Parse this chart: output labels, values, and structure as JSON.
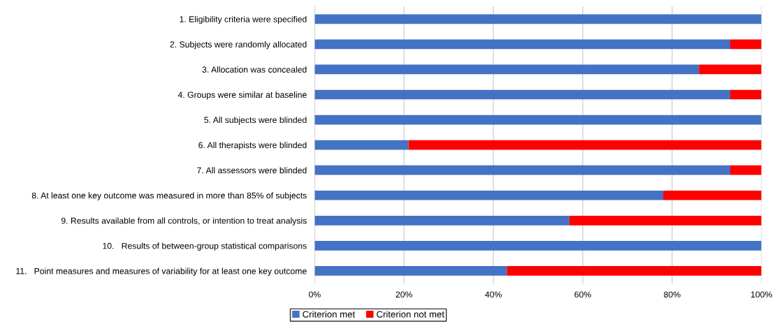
{
  "chart_data": {
    "type": "bar",
    "orientation": "horizontal",
    "stacked": true,
    "categories": [
      "1. Eligibility criteria were specified",
      "2. Subjects were randomly allocated",
      "3. Allocation was concealed",
      "4. Groups were similar at baseline",
      "5. All subjects were blinded",
      "6. All therapists were blinded",
      "7. All assessors were blinded",
      "8. At least one key outcome was measured in more than 85% of subjects",
      "9. Results available from all controls, or intention to treat analysis",
      "10.   Results of between-group statistical comparisons",
      "11.   Point measures and measures of variability for at least one key outcome"
    ],
    "series": [
      {
        "name": "Criterion met",
        "color": "#4472c4",
        "values": [
          100,
          93,
          86,
          93,
          100,
          21,
          93,
          78,
          57,
          100,
          43
        ]
      },
      {
        "name": "Criterion not met",
        "color": "#ff0000",
        "values": [
          0,
          7,
          14,
          7,
          0,
          79,
          7,
          22,
          43,
          0,
          57
        ]
      }
    ],
    "xlim": [
      0,
      100
    ],
    "xticks": [
      {
        "value": 0,
        "label": "0%"
      },
      {
        "value": 20,
        "label": "20%"
      },
      {
        "value": 40,
        "label": "40%"
      },
      {
        "value": 60,
        "label": "60%"
      },
      {
        "value": 80,
        "label": "80%"
      },
      {
        "value": 100,
        "label": "100%"
      }
    ],
    "grid": "x",
    "legend": "bottom"
  }
}
